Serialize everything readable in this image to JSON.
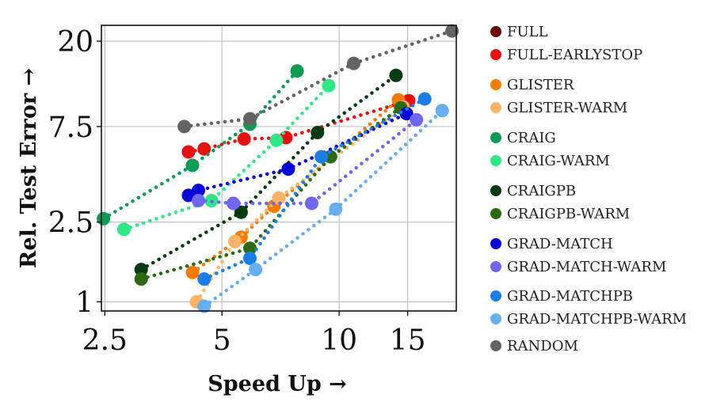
{
  "chart_data": {
    "type": "scatter",
    "title": "",
    "xlabel": "Speed Up →",
    "ylabel": "Rel. Test Error →",
    "x_scale": "log",
    "y_scale": "log",
    "xlim": [
      2.45,
      20
    ],
    "ylim": [
      0.9,
      24
    ],
    "x_ticks": [
      2.5,
      5,
      10,
      15
    ],
    "x_tick_labels": [
      "2.5",
      "5",
      "10",
      "15"
    ],
    "y_ticks": [
      1,
      2.5,
      7.5,
      20
    ],
    "y_tick_labels": [
      "1",
      "2.5",
      "7.5",
      "20"
    ],
    "grid": true,
    "legend_position": "right",
    "series": [
      {
        "name": "FULL",
        "color": "#6b0000",
        "points": []
      },
      {
        "name": "FULL-EARLYSTOP",
        "color": "#e81010",
        "points": [
          [
            4.1,
            5.6
          ],
          [
            4.5,
            5.8
          ],
          [
            5.7,
            6.5
          ],
          [
            7.3,
            6.6
          ],
          [
            15.1,
            10.1
          ]
        ]
      },
      {
        "name": "GLISTER",
        "color": "#f57c00",
        "points": [
          [
            4.2,
            1.4
          ],
          [
            5.6,
            2.1
          ],
          [
            6.8,
            3.0
          ],
          [
            14.2,
            10.2
          ]
        ]
      },
      {
        "name": "GLISTER-WARM",
        "color": "#f9b469",
        "points": [
          [
            4.3,
            1.0
          ],
          [
            5.4,
            2.0
          ],
          [
            7.0,
            3.3
          ],
          [
            14.6,
            9.4
          ]
        ]
      },
      {
        "name": "CRAIG",
        "color": "#0d9b55",
        "points": [
          [
            2.48,
            2.6
          ],
          [
            4.2,
            4.8
          ],
          [
            5.9,
            7.7
          ],
          [
            7.8,
            14.2
          ]
        ]
      },
      {
        "name": "CRAIG-WARM",
        "color": "#2ee886",
        "points": [
          [
            2.8,
            2.3
          ],
          [
            4.7,
            3.2
          ],
          [
            6.9,
            6.4
          ],
          [
            9.4,
            12.0
          ]
        ]
      },
      {
        "name": "CRAIGPB",
        "color": "#063b12",
        "points": [
          [
            3.1,
            1.45
          ],
          [
            5.6,
            2.8
          ],
          [
            8.8,
            7.0
          ],
          [
            14.0,
            13.5
          ]
        ]
      },
      {
        "name": "CRAIGPB-WARM",
        "color": "#2b6a0f",
        "points": [
          [
            3.1,
            1.3
          ],
          [
            5.9,
            1.85
          ],
          [
            9.5,
            5.3
          ],
          [
            14.4,
            9.3
          ]
        ]
      },
      {
        "name": "GRAD-MATCH",
        "color": "#0606d6",
        "points": [
          [
            4.1,
            3.4
          ],
          [
            4.35,
            3.6
          ],
          [
            7.4,
            4.6
          ],
          [
            14.9,
            8.7
          ]
        ]
      },
      {
        "name": "GRAD-MATCH-WARM",
        "color": "#6e66f0",
        "points": [
          [
            4.35,
            3.2
          ],
          [
            5.35,
            3.1
          ],
          [
            8.5,
            3.1
          ],
          [
            15.8,
            8.1
          ]
        ]
      },
      {
        "name": "GRAD-MATCHPB",
        "color": "#1a7de8",
        "points": [
          [
            4.5,
            1.3
          ],
          [
            5.9,
            1.65
          ],
          [
            9.0,
            5.3
          ],
          [
            16.6,
            10.3
          ]
        ]
      },
      {
        "name": "GRAD-MATCHPB-WARM",
        "color": "#66aef0",
        "points": [
          [
            4.5,
            0.95
          ],
          [
            6.1,
            1.45
          ],
          [
            9.8,
            2.9
          ],
          [
            18.4,
            9.0
          ]
        ]
      },
      {
        "name": "RANDOM",
        "color": "#636363",
        "points": [
          [
            4.0,
            7.5
          ],
          [
            5.9,
            8.2
          ],
          [
            10.9,
            15.5
          ],
          [
            19.5,
            22.5
          ]
        ]
      }
    ]
  }
}
